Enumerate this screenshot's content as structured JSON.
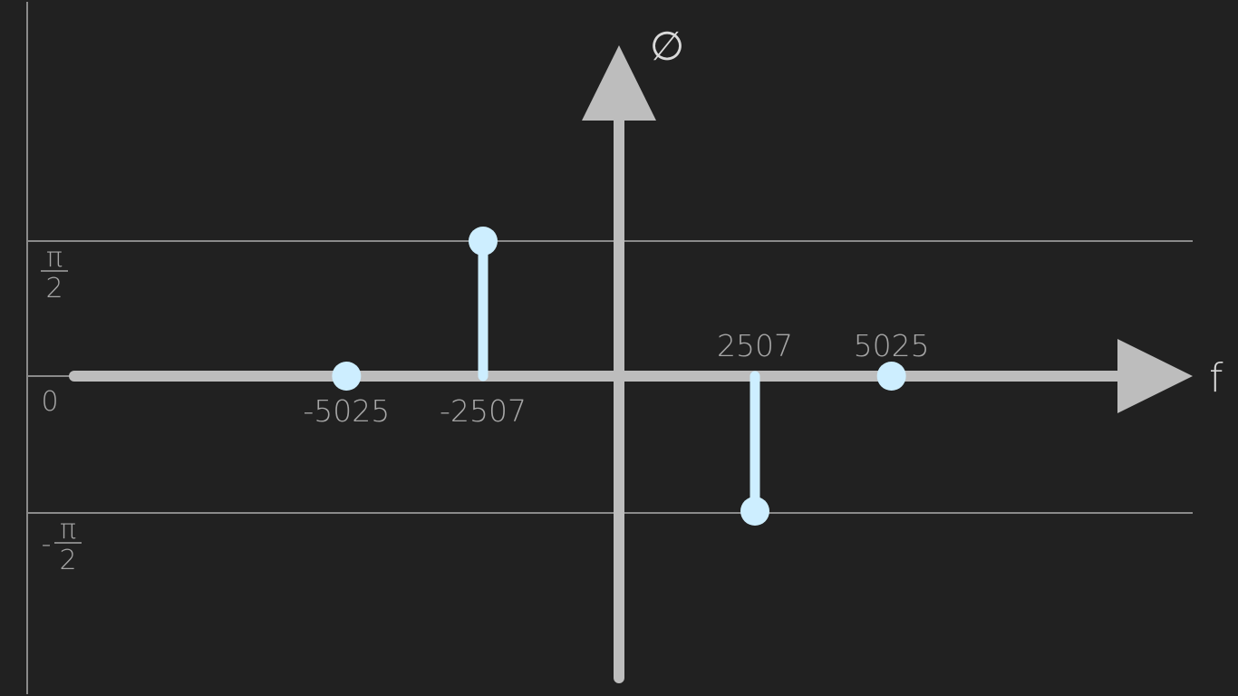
{
  "chart_data": {
    "type": "stem",
    "xlabel": "f",
    "ylabel": "∅",
    "y_ticks": [
      {
        "value": 1.5708,
        "label_num": "π",
        "label_den": "2",
        "label_sign": ""
      },
      {
        "value": 0,
        "label": "0"
      },
      {
        "value": -1.5708,
        "label_num": "π",
        "label_den": "2",
        "label_sign": "-"
      }
    ],
    "points": [
      {
        "x": -5025,
        "y": 0,
        "label": "-5025",
        "label_pos": "below"
      },
      {
        "x": -2507,
        "y": 1.5708,
        "label": "-2507",
        "label_pos": "below"
      },
      {
        "x": 2507,
        "y": -1.5708,
        "label": "2507",
        "label_pos": "above"
      },
      {
        "x": 5025,
        "y": 0,
        "label": "5025",
        "label_pos": "above"
      }
    ],
    "grid": true,
    "colors": {
      "background": "#212121",
      "axis": "#bdbdbd",
      "grid": "#8a8a8a",
      "stem": "#cdeeff",
      "text": "#a6a6a6"
    }
  }
}
